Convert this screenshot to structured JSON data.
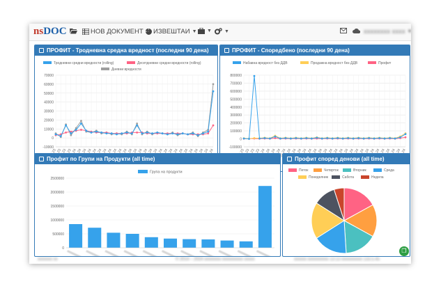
{
  "brand": {
    "ns": "ns",
    "doc": "DOC"
  },
  "nav": {
    "new_document": "НОВ ДОКУМЕНТ",
    "reports": "ИЗВЕШТАИ",
    "user_blurred": "xxxxxxxx xxxx"
  },
  "panels": {
    "p1_title": "ПРОФИТ - Тродневна средна вредност (последни 90 дена)",
    "p2_title": "ПРОФИТ - Споредбено (последни 90 дена)",
    "p3_title": "Профит по Групи на Продукти (all time)",
    "p4_title": "Профит според денови (all time)"
  },
  "footer": {
    "left_blurred": "xxxxxxx xx",
    "center_blurred": "© 2014 – 2024 xxxxxxxx xxxxxxxxxx xxxxx",
    "right_blurred": "xxxxxx xxxxxxxxxx 13:13    xxxxxxxxxx 133.5.45"
  },
  "chart_data": [
    {
      "type": "line",
      "legend": [
        "Тродневни средни вредности (rolling)",
        "Десетдневни средни вредности (rolling)",
        "Дневни вредности"
      ],
      "colors": [
        "#36a2eb",
        "#ff6384",
        "#9e9e9e"
      ],
      "x": [
        "21.12.23",
        "24.12.23",
        "27.12.23",
        "30.12.23",
        "02.01.24",
        "05.01.24",
        "08.01.24",
        "11.01.24",
        "14.01.24",
        "17.01.24",
        "20.01.24",
        "23.01.24",
        "26.01.24",
        "29.01.24",
        "01.02.24",
        "04.02.24",
        "07.02.24",
        "10.02.24",
        "13.02.24",
        "16.02.24",
        "19.02.24",
        "22.02.24",
        "25.02.24",
        "28.02.24",
        "02.03.24",
        "05.03.24",
        "08.03.24",
        "11.03.24",
        "14.03.24",
        "17.03.24",
        "20.03.24",
        "23.03.24"
      ],
      "yticks": [
        "70000",
        "60000",
        "50000",
        "40000",
        "30000",
        "20000",
        "10000",
        "0",
        "-10000"
      ],
      "ylim": [
        -10000,
        70000
      ],
      "series": [
        {
          "name": "Тродневни средни вредности (rolling)",
          "values": [
            4000,
            2000,
            14000,
            5000,
            9000,
            16000,
            8000,
            6000,
            7000,
            6000,
            5000,
            5000,
            4000,
            5000,
            6000,
            5000,
            14000,
            5000,
            6000,
            5000,
            6000,
            5000,
            4000,
            5000,
            4000,
            5000,
            4000,
            5000,
            3000,
            5000,
            7000,
            52000
          ]
        },
        {
          "name": "Десетдневни средни вредности (rolling)",
          "values": [
            3000,
            4000,
            6000,
            7000,
            8000,
            9000,
            8000,
            7000,
            6000,
            6000,
            6000,
            5000,
            5000,
            5000,
            5000,
            6000,
            6000,
            6000,
            5000,
            5000,
            5000,
            5000,
            5000,
            5000,
            5000,
            5000,
            4000,
            4000,
            4000,
            4000,
            5000,
            14000
          ]
        },
        {
          "name": "Дневни вредности",
          "values": [
            5000,
            1000,
            15000,
            3000,
            11000,
            19000,
            7000,
            6000,
            8000,
            5000,
            6000,
            4000,
            5000,
            4000,
            7000,
            4000,
            16000,
            4000,
            7000,
            4000,
            6000,
            5000,
            4000,
            6000,
            3000,
            5000,
            4000,
            6000,
            2000,
            6000,
            9000,
            60000
          ]
        }
      ]
    },
    {
      "type": "line",
      "legend": [
        "Набавна вредност без ДДВ",
        "Продажна вредност без ДДВ",
        "Профит"
      ],
      "colors": [
        "#36a2eb",
        "#ffce56",
        "#ff6384"
      ],
      "x": [
        "21.12.23",
        "24.12.23",
        "27.12.23",
        "30.12.23",
        "02.01.24",
        "05.01.24",
        "08.01.24",
        "11.01.24",
        "14.01.24",
        "17.01.24",
        "20.01.24",
        "23.01.24",
        "26.01.24",
        "29.01.24",
        "01.02.24",
        "04.02.24",
        "07.02.24",
        "10.02.24",
        "13.02.24",
        "16.02.24",
        "19.02.24",
        "22.02.24",
        "25.02.24",
        "28.02.24",
        "02.03.24",
        "05.03.24",
        "08.03.24",
        "11.03.24",
        "14.03.24",
        "17.03.24",
        "20.03.24",
        "23.03.24"
      ],
      "yticks": [
        "800000",
        "700000",
        "600000",
        "500000",
        "400000",
        "300000",
        "200000",
        "100000",
        "0",
        "-100000"
      ],
      "ylim": [
        -100000,
        800000
      ],
      "series": [
        {
          "name": "Набавна вредност без ДДВ",
          "values": [
            5000,
            0,
            790000,
            5000,
            10000,
            5000,
            30000,
            5000,
            10000,
            5000,
            10000,
            5000,
            10000,
            5000,
            15000,
            5000,
            10000,
            5000,
            10000,
            5000,
            10000,
            5000,
            10000,
            5000,
            10000,
            5000,
            10000,
            5000,
            10000,
            5000,
            20000,
            60000
          ]
        },
        {
          "name": "Продажна вредност без ДДВ",
          "values": [
            8000,
            2000,
            10000,
            8000,
            15000,
            8000,
            40000,
            8000,
            15000,
            8000,
            15000,
            8000,
            15000,
            8000,
            20000,
            8000,
            15000,
            8000,
            15000,
            8000,
            15000,
            8000,
            15000,
            8000,
            15000,
            8000,
            15000,
            8000,
            15000,
            8000,
            30000,
            70000
          ]
        },
        {
          "name": "Профит",
          "values": [
            3000,
            2000,
            5000,
            3000,
            5000,
            3000,
            10000,
            3000,
            5000,
            3000,
            5000,
            3000,
            5000,
            3000,
            5000,
            3000,
            5000,
            3000,
            5000,
            3000,
            5000,
            3000,
            5000,
            3000,
            5000,
            3000,
            5000,
            3000,
            5000,
            3000,
            10000,
            20000
          ]
        }
      ]
    },
    {
      "type": "bar",
      "legend": [
        "Група на продукти"
      ],
      "colors": [
        "#36a2eb"
      ],
      "yticks": [
        "2500000",
        "2000000",
        "1500000",
        "1000000",
        "500000",
        "0"
      ],
      "ylim": [
        0,
        2500000
      ],
      "values": [
        850000,
        720000,
        540000,
        500000,
        380000,
        330000,
        310000,
        300000,
        260000,
        230000,
        2220000
      ]
    },
    {
      "type": "pie",
      "categories": [
        "Петок",
        "Четврток",
        "Вторник",
        "Среда",
        "Понеделник",
        "Сабота",
        "Недела"
      ],
      "colors": [
        "#ff6384",
        "#ff9f40",
        "#4bc0c0",
        "#36a2eb",
        "#ffce56",
        "#4d5360",
        "#c9452b"
      ],
      "values": [
        17,
        16,
        16,
        17,
        18,
        11,
        5
      ]
    }
  ]
}
